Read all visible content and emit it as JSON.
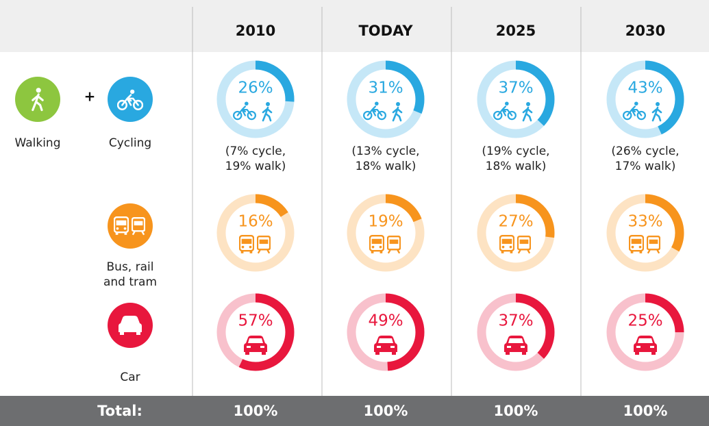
{
  "columns": [
    "2010",
    "TODAY",
    "2025",
    "2030"
  ],
  "rows": [
    {
      "labels": [
        "Walking",
        "Cycling"
      ],
      "joiner": "+",
      "color": "#29a8e0",
      "track": "#c5e7f7",
      "values": [
        26,
        31,
        37,
        43
      ],
      "value_labels": [
        "26%",
        "31%",
        "37%",
        "43%"
      ],
      "notes": [
        [
          "(7% cycle,",
          "19% walk)"
        ],
        [
          "(13% cycle,",
          "18% walk)"
        ],
        [
          "(19% cycle,",
          "18% walk)"
        ],
        [
          "(26% cycle,",
          "17% walk)"
        ]
      ]
    },
    {
      "label": [
        "Bus, rail",
        "and tram"
      ],
      "color": "#f7941d",
      "track": "#fde3c3",
      "values": [
        16,
        19,
        27,
        33
      ],
      "value_labels": [
        "16%",
        "19%",
        "27%",
        "33%"
      ]
    },
    {
      "label": [
        "Car"
      ],
      "color": "#e8173d",
      "track": "#f8c1cc",
      "values": [
        57,
        49,
        37,
        25
      ],
      "value_labels": [
        "57%",
        "49%",
        "37%",
        "25%"
      ]
    }
  ],
  "total": {
    "label": "Total:",
    "values": [
      100,
      100,
      100,
      100
    ],
    "value_labels": [
      "100%",
      "100%",
      "100%",
      "100%"
    ]
  }
}
